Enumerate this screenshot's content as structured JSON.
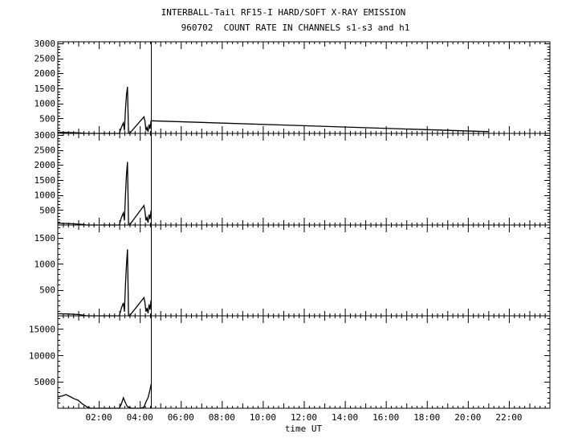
{
  "title": "INTERBALL-Tail RF15-I HARD/SOFT X-RAY EMISSION",
  "subtitle": "960702  COUNT RATE IN CHANNELS s1-s3 and h1",
  "chart_data": {
    "type": "line",
    "xlabel": "time UT",
    "x_ticks": [
      "02:00",
      "04:00",
      "06:00",
      "08:00",
      "10:00",
      "12:00",
      "14:00",
      "16:00",
      "18:00",
      "20:00",
      "22:00"
    ],
    "xlim_hours": [
      0,
      24
    ],
    "marker_line_hour": 4.55,
    "grid": false,
    "panels": [
      {
        "ylim": [
          0,
          3050
        ],
        "y_ticks": [
          500,
          1000,
          1500,
          2000,
          2500,
          3000
        ],
        "x": [
          0,
          0.5,
          1.0,
          1.2,
          1.4,
          3.0,
          3.1,
          3.2,
          3.25,
          3.3,
          3.35,
          3.4,
          3.45,
          3.5,
          4.2,
          4.25,
          4.3,
          4.35,
          4.4,
          4.45,
          4.5,
          4.55,
          21.0
        ],
        "y": [
          40,
          30,
          20,
          10,
          0,
          0,
          200,
          350,
          100,
          800,
          1300,
          1550,
          0,
          0,
          550,
          400,
          100,
          200,
          50,
          300,
          150,
          420,
          60
        ]
      },
      {
        "ylim": [
          0,
          3050
        ],
        "y_ticks": [
          500,
          1000,
          1500,
          2000,
          2500,
          3000
        ],
        "x": [
          0,
          0.5,
          1.0,
          1.2,
          1.4,
          3.0,
          3.1,
          3.2,
          3.25,
          3.3,
          3.35,
          3.4,
          3.45,
          3.5,
          4.2,
          4.25,
          4.3,
          4.35,
          4.4,
          4.45,
          4.5,
          4.55
        ],
        "y": [
          60,
          50,
          30,
          20,
          0,
          0,
          250,
          400,
          150,
          1000,
          1700,
          2100,
          0,
          0,
          650,
          450,
          150,
          250,
          80,
          350,
          200,
          480
        ]
      },
      {
        "ylim": [
          0,
          1750
        ],
        "y_ticks": [
          500,
          1000,
          1500
        ],
        "x": [
          0,
          0.5,
          1.0,
          1.2,
          1.4,
          3.0,
          3.1,
          3.2,
          3.25,
          3.3,
          3.35,
          3.4,
          3.45,
          3.5,
          4.2,
          4.25,
          4.3,
          4.35,
          4.4,
          4.45,
          4.5,
          4.55
        ],
        "y": [
          40,
          35,
          25,
          15,
          0,
          0,
          150,
          250,
          80,
          600,
          1000,
          1280,
          0,
          0,
          350,
          250,
          80,
          150,
          50,
          220,
          120,
          300
        ]
      },
      {
        "ylim": [
          0,
          17500
        ],
        "y_ticks": [
          5000,
          10000,
          15000
        ],
        "x": [
          0,
          0.2,
          0.4,
          0.6,
          0.8,
          1.0,
          1.2,
          1.4,
          1.6,
          1.8,
          2.0,
          3.0,
          3.1,
          3.2,
          3.3,
          3.4,
          3.6,
          4.0,
          4.2,
          4.3,
          4.4,
          4.5,
          4.55
        ],
        "y": [
          2200,
          2300,
          2600,
          2200,
          1800,
          1500,
          800,
          300,
          0,
          0,
          0,
          0,
          800,
          2000,
          1000,
          300,
          0,
          0,
          200,
          1200,
          2000,
          3500,
          4500
        ]
      }
    ]
  }
}
